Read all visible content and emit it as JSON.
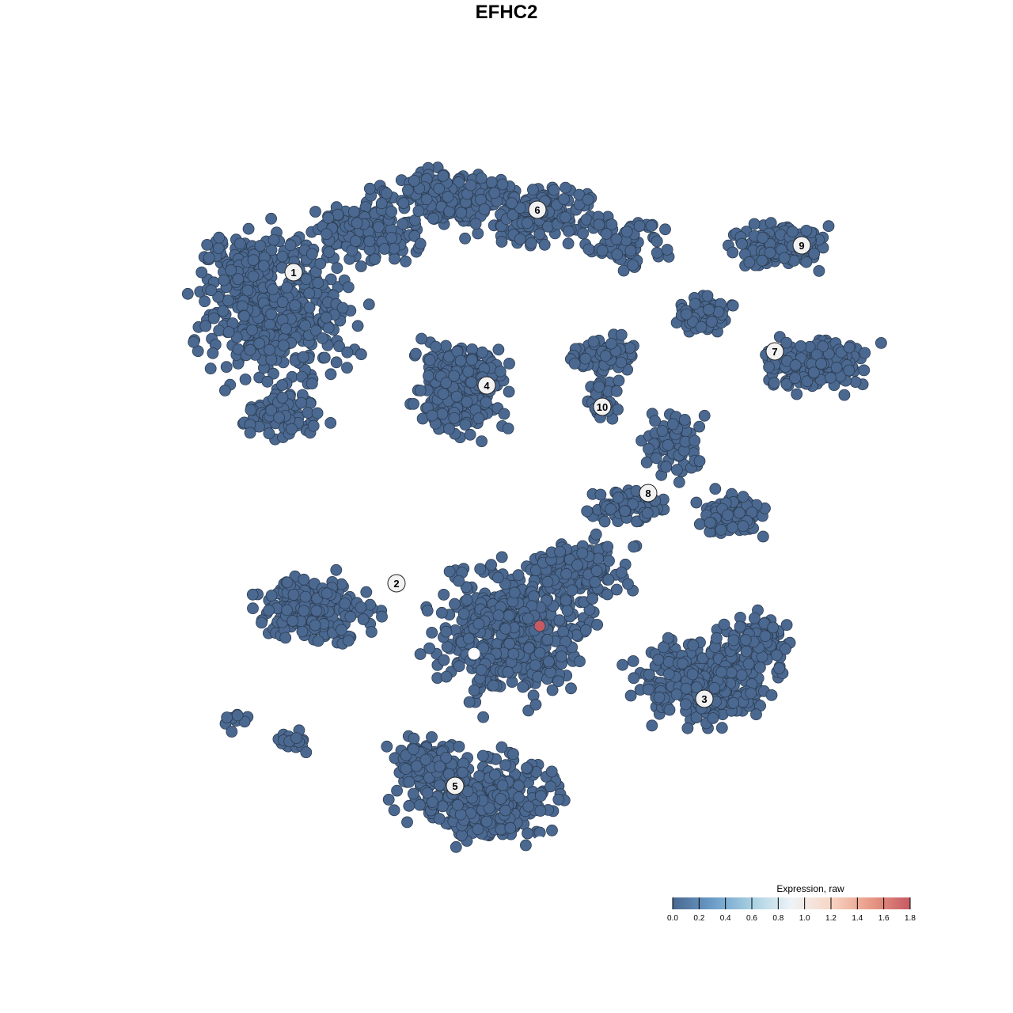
{
  "chart_data": {
    "type": "scatter",
    "title": "EFHC2",
    "xlabel": "",
    "ylabel": "",
    "grid": false,
    "point_color_default": "#4a6890",
    "cluster_labels": [
      "1",
      "2",
      "3",
      "4",
      "5",
      "6",
      "7",
      "8",
      "9",
      "10"
    ],
    "highlighted_points": [
      {
        "cluster": "center",
        "expression": 1.8,
        "color": "#c65a63"
      },
      {
        "cluster": "center",
        "expression": 1.0,
        "color": "#ffffff"
      },
      {
        "cluster": "5",
        "expression": 1.0,
        "color": "#ffffff"
      }
    ],
    "legend": {
      "title": "Expression, raw",
      "placement": "bottom-right",
      "min": 0.0,
      "max": 1.8,
      "ticks": [
        "0.0",
        "0.2",
        "0.4",
        "0.6",
        "0.8",
        "1.0",
        "1.2",
        "1.4",
        "1.6",
        "1.8"
      ],
      "colors": [
        "#4a6890",
        "#6a9cc8",
        "#a8d0e2",
        "#eef3f7",
        "#f8d5c4",
        "#e89a86",
        "#c65a63"
      ]
    }
  }
}
